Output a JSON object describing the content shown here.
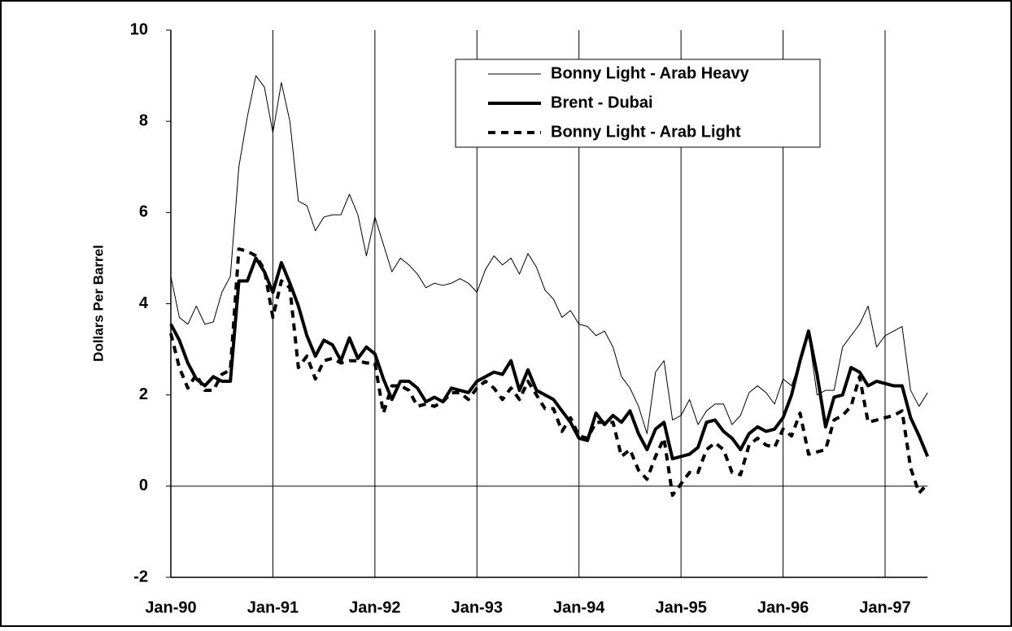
{
  "chart_data": {
    "type": "line",
    "y_label": "Dollars Per Barrel",
    "categories": [
      "Jan-90",
      null,
      null,
      null,
      null,
      null,
      null,
      null,
      null,
      null,
      null,
      null,
      "Jan-91",
      null,
      null,
      null,
      null,
      null,
      null,
      null,
      null,
      null,
      null,
      null,
      "Jan-92",
      null,
      null,
      null,
      null,
      null,
      null,
      null,
      null,
      null,
      null,
      null,
      "Jan-93",
      null,
      null,
      null,
      null,
      null,
      null,
      null,
      null,
      null,
      null,
      null,
      "Jan-94",
      null,
      null,
      null,
      null,
      null,
      null,
      null,
      null,
      null,
      null,
      null,
      "Jan-95",
      null,
      null,
      null,
      null,
      null,
      null,
      null,
      null,
      null,
      null,
      null,
      "Jan-96",
      null,
      null,
      null,
      null,
      null,
      null,
      null,
      null,
      null,
      null,
      null,
      "Jan-97",
      null,
      null,
      null,
      null,
      null
    ],
    "ylim": [
      -2,
      10
    ],
    "yticks": [
      -2,
      0,
      2,
      4,
      6,
      8,
      10
    ],
    "series": [
      {
        "name": "Bonny Light - Arab Heavy",
        "color": "#000000",
        "style": "thin",
        "values": [
          4.6,
          3.7,
          3.55,
          3.95,
          3.55,
          3.6,
          4.25,
          4.6,
          7.0,
          8.1,
          9.0,
          8.75,
          7.75,
          8.85,
          8.0,
          6.25,
          6.15,
          5.6,
          5.9,
          5.95,
          5.95,
          6.4,
          5.95,
          5.05,
          5.9,
          5.3,
          4.7,
          5.0,
          4.85,
          4.65,
          4.35,
          4.45,
          4.4,
          4.45,
          4.55,
          4.45,
          4.25,
          4.75,
          5.05,
          4.85,
          5.0,
          4.65,
          5.1,
          4.8,
          4.3,
          4.1,
          3.7,
          3.85,
          3.55,
          3.5,
          3.3,
          3.4,
          3.05,
          2.4,
          2.15,
          1.75,
          1.15,
          2.5,
          2.75,
          1.45,
          1.55,
          1.9,
          1.35,
          1.65,
          1.8,
          1.8,
          1.35,
          1.55,
          2.05,
          2.2,
          2.05,
          1.8,
          2.35,
          2.2,
          2.75,
          3.35,
          2.0,
          2.1,
          2.1,
          3.05,
          3.3,
          3.55,
          3.95,
          3.05,
          3.3,
          3.4,
          3.5,
          2.1,
          1.75,
          2.05
        ]
      },
      {
        "name": "Brent - Dubai",
        "color": "#000000",
        "style": "thick",
        "values": [
          3.55,
          3.2,
          2.7,
          2.35,
          2.2,
          2.4,
          2.3,
          2.3,
          4.5,
          4.5,
          5.0,
          4.7,
          4.25,
          4.9,
          4.45,
          3.95,
          3.3,
          2.85,
          3.2,
          3.1,
          2.75,
          3.25,
          2.8,
          3.05,
          2.9,
          2.35,
          1.9,
          2.3,
          2.3,
          2.15,
          1.85,
          1.95,
          1.85,
          2.15,
          2.1,
          2.05,
          2.3,
          2.4,
          2.5,
          2.45,
          2.75,
          2.1,
          2.55,
          2.1,
          2.0,
          1.9,
          1.65,
          1.4,
          1.05,
          1.0,
          1.6,
          1.35,
          1.55,
          1.4,
          1.65,
          1.15,
          0.8,
          1.25,
          1.4,
          0.6,
          0.65,
          0.7,
          0.85,
          1.4,
          1.45,
          1.2,
          1.05,
          0.8,
          1.15,
          1.3,
          1.2,
          1.25,
          1.5,
          2.0,
          2.75,
          3.4,
          2.45,
          1.3,
          1.95,
          2.0,
          2.6,
          2.5,
          2.2,
          2.3,
          2.25,
          2.2,
          2.2,
          1.5,
          1.1,
          0.65
        ]
      },
      {
        "name": "Bonny Light - Arab Light",
        "color": "#000000",
        "style": "dashed",
        "values": [
          3.35,
          2.6,
          2.15,
          2.45,
          2.1,
          2.1,
          2.45,
          2.55,
          5.2,
          5.15,
          5.05,
          4.75,
          3.7,
          4.5,
          4.35,
          2.6,
          2.85,
          2.35,
          2.75,
          2.8,
          2.7,
          2.75,
          2.75,
          2.7,
          2.7,
          1.6,
          2.2,
          2.2,
          2.1,
          1.75,
          1.8,
          1.75,
          1.85,
          2.05,
          2.05,
          1.9,
          2.15,
          2.3,
          2.15,
          1.9,
          2.15,
          1.9,
          2.3,
          2.0,
          1.7,
          1.7,
          1.2,
          1.5,
          1.1,
          1.05,
          1.4,
          1.4,
          1.4,
          0.65,
          0.8,
          0.35,
          0.15,
          0.65,
          1.05,
          -0.2,
          0.05,
          0.3,
          0.3,
          0.8,
          0.95,
          0.8,
          0.3,
          0.25,
          0.9,
          1.05,
          0.9,
          0.85,
          1.25,
          1.1,
          1.6,
          0.7,
          0.75,
          0.8,
          1.45,
          1.55,
          1.75,
          2.4,
          1.4,
          1.45,
          1.5,
          1.55,
          1.65,
          0.4,
          -0.15,
          0.05
        ]
      }
    ]
  }
}
